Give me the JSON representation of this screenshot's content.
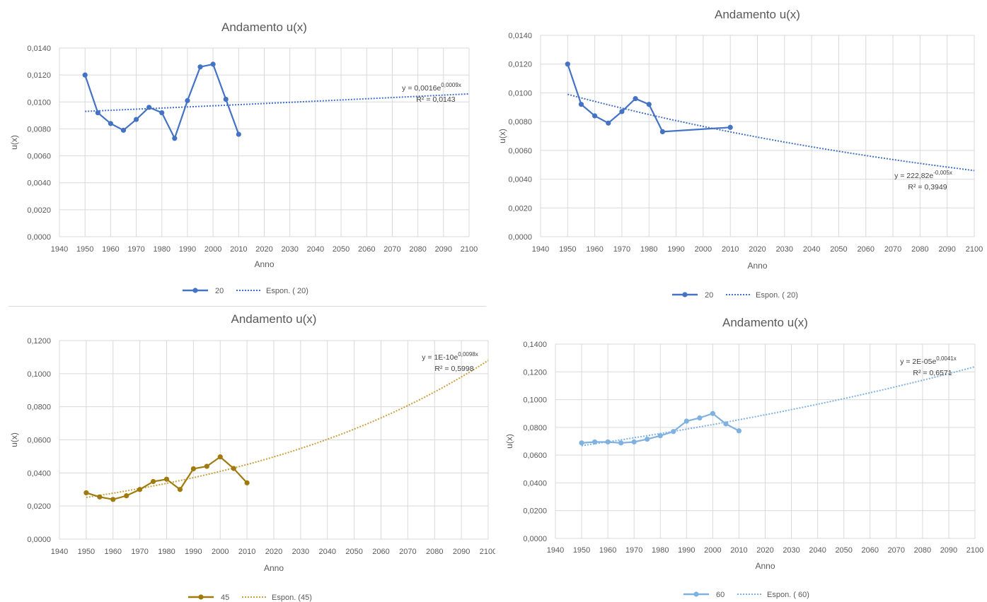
{
  "chart_data": [
    {
      "type": "line",
      "title": "Andamento u(x)",
      "xlabel": "Anno",
      "ylabel": "u(x)",
      "xlim": [
        1940,
        2100
      ],
      "ylim": [
        0,
        0.014
      ],
      "xticks": [
        "1940",
        "1950",
        "1960",
        "1970",
        "1980",
        "1990",
        "2000",
        "2010",
        "2020",
        "2030",
        "2040",
        "2050",
        "2060",
        "2070",
        "2080",
        "2090",
        "2100"
      ],
      "yticks": [
        "0,0000",
        "0,0020",
        "0,0040",
        "0,0060",
        "0,0080",
        "0,0100",
        "0,0120",
        "0,0140"
      ],
      "series": [
        {
          "name": "20",
          "color": "#4472c4",
          "x": [
            1950,
            1955,
            1960,
            1965,
            1970,
            1975,
            1980,
            1985,
            1990,
            1995,
            2000,
            2005,
            2010
          ],
          "y": [
            0.012,
            0.0092,
            0.0084,
            0.0079,
            0.0087,
            0.0096,
            0.0092,
            0.0073,
            0.0101,
            0.0126,
            0.0128,
            0.0102,
            0.0076
          ]
        }
      ],
      "trendline": {
        "name": "Espon. ( 20)",
        "color": "#4472c4",
        "x": [
          1950,
          2100
        ],
        "y": [
          0.0093,
          0.0106
        ]
      },
      "equation": {
        "base": "y = 0,0016e",
        "exp": "0,0009x",
        "r2": "R² = 0,0143"
      },
      "legend_position": "bottom"
    },
    {
      "type": "line",
      "title": "Andamento u(x)",
      "xlabel": "Anno",
      "ylabel": "u(x)",
      "xlim": [
        1940,
        2100
      ],
      "ylim": [
        0,
        0.014
      ],
      "xticks": [
        "1940",
        "1950",
        "1960",
        "1970",
        "1980",
        "1990",
        "2000",
        "2010",
        "2020",
        "2030",
        "2040",
        "2050",
        "2060",
        "2070",
        "2080",
        "2090",
        "2100"
      ],
      "yticks": [
        "0,0000",
        "0,0020",
        "0,0040",
        "0,0060",
        "0,0080",
        "0,0100",
        "0,0120",
        "0,0140"
      ],
      "series": [
        {
          "name": "20",
          "color": "#4472c4",
          "x": [
            1950,
            1955,
            1960,
            1965,
            1970,
            1975,
            1980,
            1985,
            2010
          ],
          "y": [
            0.012,
            0.0092,
            0.0084,
            0.0079,
            0.0087,
            0.0096,
            0.0092,
            0.0073,
            0.0076
          ]
        }
      ],
      "trendline": {
        "name": "Espon. ( 20)",
        "color": "#4472c4",
        "x": [
          1950,
          2100
        ],
        "y": [
          0.0099,
          0.0046
        ]
      },
      "equation": {
        "base": "y = 222,82e",
        "exp": "-0,005x",
        "r2": "R² = 0,3949"
      },
      "legend_position": "bottom"
    },
    {
      "type": "line",
      "title": "Andamento u(x)",
      "xlabel": "Anno",
      "ylabel": "u(x)",
      "xlim": [
        1940,
        2100
      ],
      "ylim": [
        0,
        0.12
      ],
      "xticks": [
        "1940",
        "1950",
        "1960",
        "1970",
        "1980",
        "1990",
        "2000",
        "2010",
        "2020",
        "2030",
        "2040",
        "2050",
        "2060",
        "2070",
        "2080",
        "2090",
        "2100"
      ],
      "yticks": [
        "0,0000",
        "0,0200",
        "0,0400",
        "0,0600",
        "0,0800",
        "0,1000",
        "0,1200"
      ],
      "series": [
        {
          "name": "45",
          "color": "#a07a0c",
          "x": [
            1950,
            1955,
            1960,
            1965,
            1970,
            1975,
            1980,
            1985,
            1990,
            1995,
            2000,
            2005,
            2010
          ],
          "y": [
            0.028,
            0.0255,
            0.024,
            0.0262,
            0.03,
            0.0348,
            0.0362,
            0.03,
            0.0425,
            0.044,
            0.0497,
            0.0427,
            0.034
          ]
        }
      ],
      "trendline": {
        "name": "Espon. (45)",
        "color": "#c8a040",
        "x": [
          1950,
          2100
        ],
        "y": [
          0.0252,
          0.108
        ]
      },
      "equation": {
        "base": "y = 1E-10e",
        "exp": "0,0098x",
        "r2": "R² = 0,5998"
      },
      "legend_position": "bottom"
    },
    {
      "type": "line",
      "title": "Andamento u(x)",
      "xlabel": "Anno",
      "ylabel": "u(x)",
      "xlim": [
        1940,
        2100
      ],
      "ylim": [
        0,
        0.14
      ],
      "xticks": [
        "1940",
        "1950",
        "1960",
        "1970",
        "1980",
        "1990",
        "2000",
        "2010",
        "2020",
        "2030",
        "2040",
        "2050",
        "2060",
        "2070",
        "2080",
        "2090",
        "2100"
      ],
      "yticks": [
        "0,0000",
        "0,0200",
        "0,0400",
        "0,0600",
        "0,0800",
        "0,1000",
        "0,1200",
        "0,1400"
      ],
      "series": [
        {
          "name": "60",
          "color": "#7fb1e1",
          "x": [
            1950,
            1955,
            1960,
            1965,
            1970,
            1975,
            1980,
            1985,
            1990,
            1995,
            2000,
            2005,
            2010
          ],
          "y": [
            0.0688,
            0.0695,
            0.0695,
            0.0688,
            0.0695,
            0.0715,
            0.074,
            0.077,
            0.0845,
            0.0868,
            0.09,
            0.0825,
            0.0775
          ]
        }
      ],
      "trendline": {
        "name": "Espon. ( 60)",
        "color": "#7fb1e1",
        "x": [
          1950,
          2100
        ],
        "y": [
          0.0668,
          0.1237
        ]
      },
      "equation": {
        "base": "y = 2E-05e",
        "exp": "0,0041x",
        "r2": "R² = 0,6571"
      },
      "legend_position": "bottom"
    }
  ]
}
